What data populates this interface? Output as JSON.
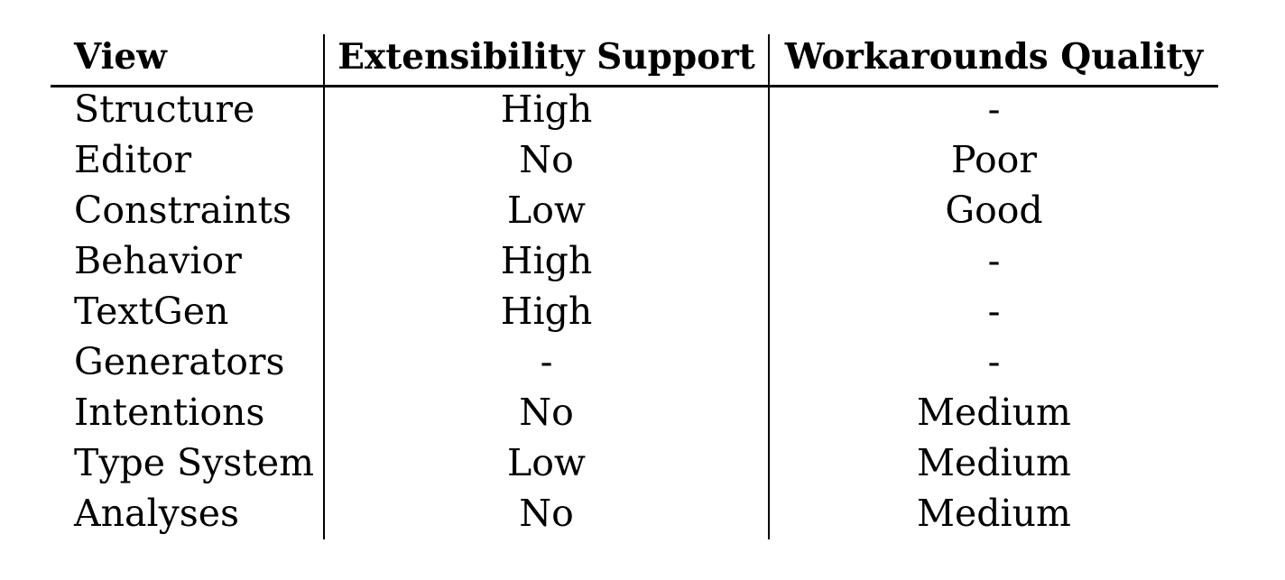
{
  "table": {
    "headers": [
      "View",
      "Extensibility Support",
      "Workarounds Quality"
    ],
    "rows": [
      [
        "Structure",
        "High",
        "-"
      ],
      [
        "Editor",
        "No",
        "Poor"
      ],
      [
        "Constraints",
        "Low",
        "Good"
      ],
      [
        "Behavior",
        "High",
        "-"
      ],
      [
        "TextGen",
        "High",
        "-"
      ],
      [
        "Generators",
        "-",
        "-"
      ],
      [
        "Intentions",
        "No",
        "Medium"
      ],
      [
        "Type System",
        "Low",
        "Medium"
      ],
      [
        "Analyses",
        "No",
        "Medium"
      ]
    ]
  }
}
